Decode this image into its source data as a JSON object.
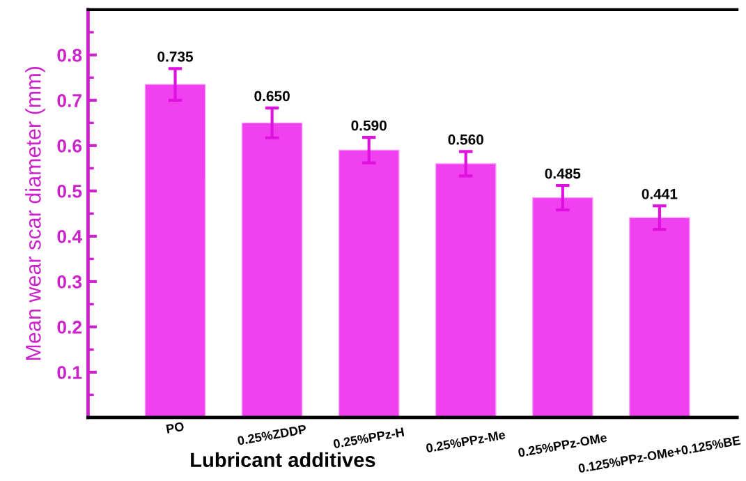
{
  "chart_data": {
    "type": "bar",
    "xlabel": "Lubricant additives",
    "ylabel": "Mean wear scar diameter (mm)",
    "categories": [
      "PO",
      "0.25%ZDDP",
      "0.25%PPz-H",
      "0.25%PPz-Me",
      "0.25%PPz-OMe",
      "0.125%PPz-OMe+0.125%BE"
    ],
    "values": [
      0.735,
      0.65,
      0.59,
      0.56,
      0.485,
      0.441
    ],
    "value_labels": [
      "0.735",
      "0.650",
      "0.590",
      "0.560",
      "0.485",
      "0.441"
    ],
    "errors": [
      0.035,
      0.033,
      0.028,
      0.027,
      0.027,
      0.026
    ],
    "color": "#f040f0",
    "ylim": [
      0,
      0.9
    ],
    "yticks": [
      0.1,
      0.2,
      0.3,
      0.4,
      0.5,
      0.6,
      0.7,
      0.8
    ],
    "grid": false,
    "legend": false
  }
}
